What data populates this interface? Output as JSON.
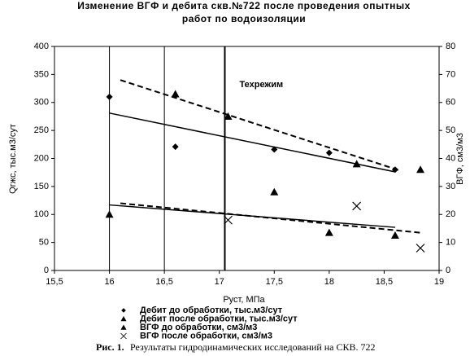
{
  "chart_data": {
    "type": "scatter",
    "title": [
      "Изменение ВГФ и дебита скв.№722 после проведения опытных",
      "работ по водоизоляции"
    ],
    "xlabel": "Руст, МПа",
    "ylabel": "Qгжс, тыс.м3/сут",
    "y2label": "ВГФ, см3/м3",
    "xlim": [
      15.5,
      19
    ],
    "ylim": [
      0,
      400
    ],
    "y2lim": [
      0,
      80
    ],
    "xticks": [
      {
        "value": 15.5,
        "label": "15,5"
      },
      16,
      {
        "value": 16.5,
        "label": "16,5"
      },
      17,
      {
        "value": 17.5,
        "label": "17,5"
      },
      18,
      {
        "value": 18.5,
        "label": "18,5"
      },
      19
    ],
    "yticks": [
      0,
      50,
      100,
      150,
      200,
      250,
      300,
      350,
      400
    ],
    "y2ticks": [
      0,
      10,
      20,
      30,
      40,
      50,
      60,
      70,
      80
    ],
    "vertical_lines": [
      16,
      16.5
    ],
    "regime_line": {
      "x": 17.05,
      "label": "Техрежим"
    },
    "series": [
      {
        "name": "Дебит до обработки, тыс.м3/сут",
        "marker": "diamond",
        "color": "#000000",
        "x": [
          16,
          16.6,
          17.5,
          18,
          18.6
        ],
        "values": [
          310,
          221,
          216,
          210,
          180
        ]
      },
      {
        "name": "Дебит после обработки, тыс.м3/сут",
        "marker": "triangle",
        "color": "#000000",
        "x": [
          16.6,
          17.08,
          18.25,
          18.83
        ],
        "values": [
          315,
          275,
          190,
          180
        ]
      },
      {
        "name": "ВГФ до обработки, см3/м3",
        "marker": "triangle",
        "color": "#000000",
        "axis": "y2",
        "x": [
          16,
          17.5,
          18,
          18.6
        ],
        "values": [
          20,
          28,
          13.5,
          12.5
        ]
      },
      {
        "name": "ВГФ после обработки, см3/м3",
        "marker": "x",
        "color": "#000000",
        "axis": "y2",
        "x": [
          17.08,
          18.25,
          18.83
        ],
        "values": [
          18,
          23,
          8
        ]
      }
    ],
    "trendlines": [
      {
        "x": [
          16,
          18.6
        ],
        "values": [
          281,
          176
        ],
        "dash": false
      },
      {
        "x": [
          16.1,
          18.65
        ],
        "values": [
          340,
          178
        ],
        "dash": true
      },
      {
        "x": [
          16,
          18.6
        ],
        "values": [
          23.4,
          15.4
        ],
        "axis": "y2",
        "dash": false
      },
      {
        "x": [
          16.1,
          18.85
        ],
        "values": [
          24,
          13.4
        ],
        "axis": "y2",
        "dash": true
      }
    ],
    "caption_label": "Рис. 1.",
    "caption_text": "Результаты гидродинамических исследований на СКВ. 722"
  }
}
